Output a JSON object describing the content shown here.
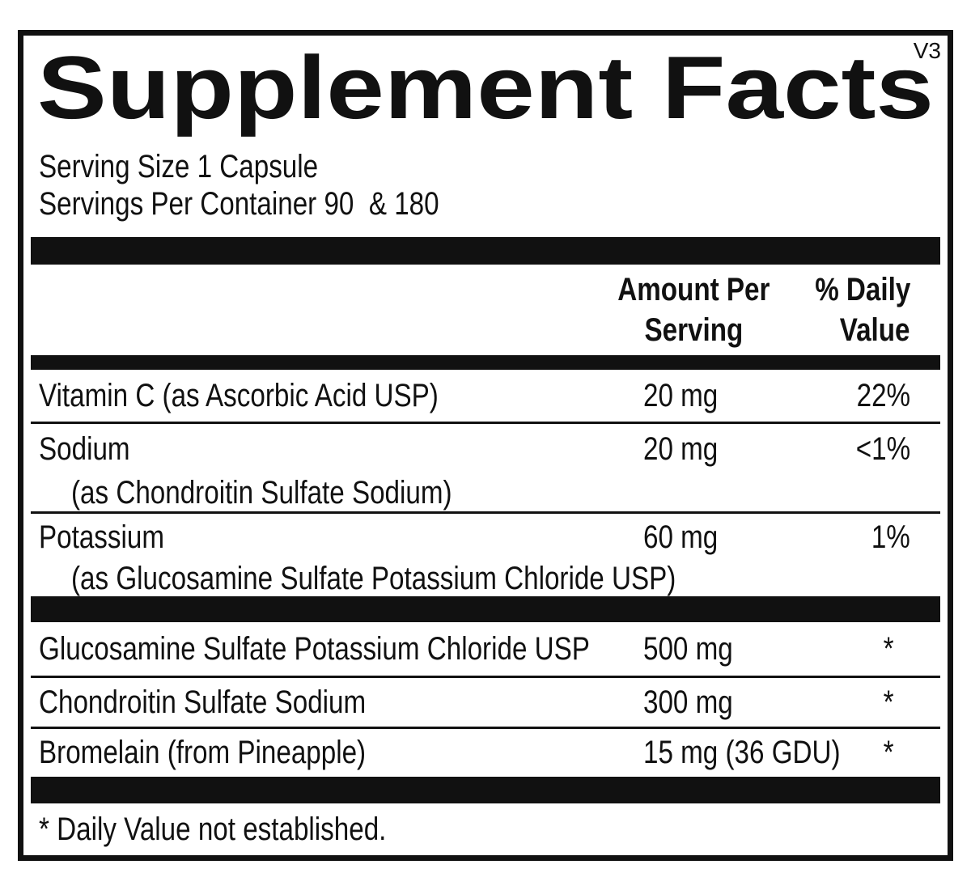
{
  "version": "V3",
  "title": "Supplement Facts",
  "serving": {
    "size_line": "Serving Size 1 Capsule",
    "container_line": "Servings Per Container 90  & 180"
  },
  "columns": {
    "amount_header_line1": "Amount Per",
    "amount_header_line2": "Serving",
    "dv_header_line1": "% Daily",
    "dv_header_line2": "Value"
  },
  "rows": [
    {
      "name": "Vitamin C (as Ascorbic Acid USP)",
      "amount": "20 mg",
      "dv": "22%"
    },
    {
      "name": "Sodium",
      "amount": "20 mg",
      "dv": "<1%",
      "sub": "(as Chondroitin Sulfate Sodium)"
    },
    {
      "name": "Potassium",
      "amount": "60 mg",
      "dv": "1%",
      "sub": "(as Glucosamine Sulfate Potassium Chloride USP)"
    }
  ],
  "other_rows": [
    {
      "name": "Glucosamine Sulfate Potassium Chloride USP",
      "amount": "500 mg",
      "dv": "*"
    },
    {
      "name": "Chondroitin Sulfate Sodium",
      "amount": "300 mg",
      "dv": "*"
    },
    {
      "name": "Bromelain (from Pineapple)",
      "amount": "15 mg (36 GDU)",
      "dv": "*"
    }
  ],
  "footnote": "* Daily Value not established.",
  "colors": {
    "ink": "#111111",
    "bar": "#111111",
    "background": "#ffffff"
  }
}
